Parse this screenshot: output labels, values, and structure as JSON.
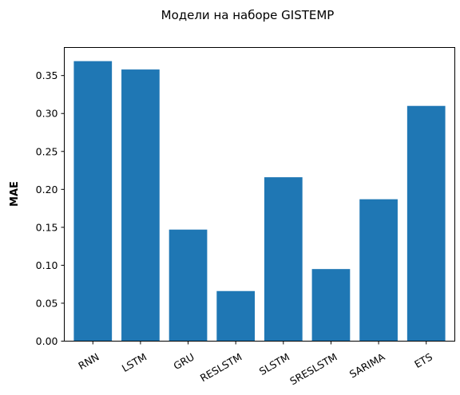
{
  "chart_data": {
    "type": "bar",
    "title": "Модели на наборе GISTEMP",
    "xlabel": "",
    "ylabel": "MAE",
    "categories": [
      "RNN",
      "LSTM",
      "GRU",
      "RESLSTM",
      "SLSTM",
      "SRESLSTM",
      "SARIMA",
      "ETS"
    ],
    "values": [
      0.369,
      0.358,
      0.147,
      0.066,
      0.216,
      0.095,
      0.187,
      0.31
    ],
    "ylim": [
      0,
      0.387
    ],
    "yticks": [
      0.0,
      0.05,
      0.1,
      0.15,
      0.2,
      0.25,
      0.3,
      0.35
    ],
    "ytick_labels": [
      "0.00",
      "0.05",
      "0.10",
      "0.15",
      "0.20",
      "0.25",
      "0.30",
      "0.35"
    ],
    "bar_color": "#1f77b4",
    "grid": false,
    "legend": "none"
  }
}
